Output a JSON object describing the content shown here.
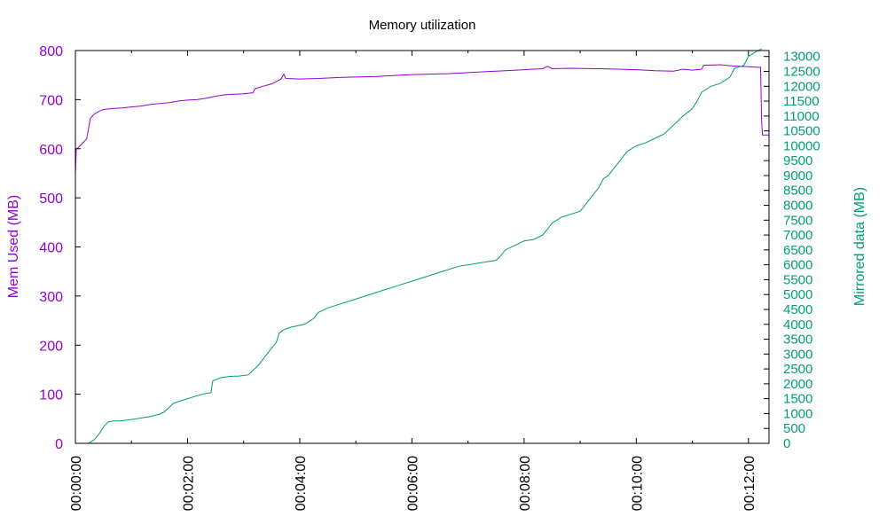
{
  "chart_data": {
    "type": "line",
    "title": "Memory utilization",
    "ylabel": "Mem Used (MB)",
    "y2label": "Mirrored data (MB)",
    "xlim": [
      0,
      742
    ],
    "ylim": [
      0,
      800
    ],
    "y2lim": [
      0,
      13200
    ],
    "x_ticks": [
      {
        "value": 0,
        "label": "00:00:00"
      },
      {
        "value": 120,
        "label": "00:02:00"
      },
      {
        "value": 240,
        "label": "00:04:00"
      },
      {
        "value": 360,
        "label": "00:06:00"
      },
      {
        "value": 480,
        "label": "00:08:00"
      },
      {
        "value": 600,
        "label": "00:10:00"
      },
      {
        "value": 720,
        "label": "00:12:00"
      }
    ],
    "x_minor_ticks": [
      60,
      180,
      300,
      420,
      540,
      660
    ],
    "y_ticks": [
      0,
      100,
      200,
      300,
      400,
      500,
      600,
      700,
      800
    ],
    "y2_ticks": [
      0,
      500,
      1000,
      1500,
      2000,
      2500,
      3000,
      3500,
      4000,
      4500,
      5000,
      5500,
      6000,
      6500,
      7000,
      7500,
      8000,
      8500,
      9000,
      9500,
      10000,
      10500,
      11000,
      11500,
      12000,
      12500,
      13000
    ],
    "grid": false,
    "legend": "none",
    "colors": {
      "mem": "#9400d3",
      "mirrored": "#009e73",
      "axis": "#000000"
    },
    "series": [
      {
        "key": "mem",
        "axis": "left",
        "points": [
          [
            0,
            550
          ],
          [
            1,
            600
          ],
          [
            3,
            602
          ],
          [
            8,
            612
          ],
          [
            12,
            620
          ],
          [
            14,
            640
          ],
          [
            16,
            662
          ],
          [
            20,
            670
          ],
          [
            25,
            676
          ],
          [
            30,
            680
          ],
          [
            40,
            682
          ],
          [
            50,
            683
          ],
          [
            60,
            685
          ],
          [
            70,
            687
          ],
          [
            80,
            690
          ],
          [
            90,
            692
          ],
          [
            100,
            694
          ],
          [
            110,
            697
          ],
          [
            120,
            699
          ],
          [
            130,
            700
          ],
          [
            140,
            703
          ],
          [
            150,
            707
          ],
          [
            160,
            710
          ],
          [
            170,
            711
          ],
          [
            180,
            712
          ],
          [
            190,
            714
          ],
          [
            192,
            722
          ],
          [
            200,
            727
          ],
          [
            210,
            732
          ],
          [
            215,
            737
          ],
          [
            220,
            742
          ],
          [
            223,
            752
          ],
          [
            225,
            743
          ],
          [
            240,
            742
          ],
          [
            260,
            743
          ],
          [
            280,
            745
          ],
          [
            300,
            746
          ],
          [
            320,
            747
          ],
          [
            340,
            749
          ],
          [
            360,
            751
          ],
          [
            380,
            752
          ],
          [
            400,
            753
          ],
          [
            420,
            755
          ],
          [
            440,
            757
          ],
          [
            460,
            759
          ],
          [
            480,
            761
          ],
          [
            490,
            762
          ],
          [
            500,
            763
          ],
          [
            505,
            768
          ],
          [
            510,
            763
          ],
          [
            530,
            764
          ],
          [
            560,
            763
          ],
          [
            580,
            762
          ],
          [
            600,
            761
          ],
          [
            620,
            759
          ],
          [
            640,
            758
          ],
          [
            650,
            762
          ],
          [
            660,
            760
          ],
          [
            670,
            762
          ],
          [
            672,
            770
          ],
          [
            690,
            771
          ],
          [
            700,
            769
          ],
          [
            710,
            768
          ],
          [
            720,
            767
          ],
          [
            730,
            766
          ],
          [
            733,
            766
          ],
          [
            734,
            660
          ],
          [
            735,
            628
          ],
          [
            742,
            628
          ]
        ]
      },
      {
        "key": "mirrored",
        "axis": "right",
        "points": [
          [
            14,
            0
          ],
          [
            20,
            120
          ],
          [
            25,
            300
          ],
          [
            30,
            550
          ],
          [
            35,
            720
          ],
          [
            40,
            750
          ],
          [
            50,
            760
          ],
          [
            60,
            800
          ],
          [
            70,
            850
          ],
          [
            80,
            900
          ],
          [
            90,
            980
          ],
          [
            95,
            1050
          ],
          [
            100,
            1200
          ],
          [
            105,
            1350
          ],
          [
            110,
            1400
          ],
          [
            120,
            1500
          ],
          [
            130,
            1600
          ],
          [
            140,
            1680
          ],
          [
            145,
            1700
          ],
          [
            147,
            2100
          ],
          [
            155,
            2200
          ],
          [
            165,
            2250
          ],
          [
            175,
            2260
          ],
          [
            185,
            2300
          ],
          [
            190,
            2450
          ],
          [
            195,
            2600
          ],
          [
            200,
            2800
          ],
          [
            205,
            3000
          ],
          [
            210,
            3200
          ],
          [
            215,
            3400
          ],
          [
            218,
            3700
          ],
          [
            222,
            3800
          ],
          [
            230,
            3900
          ],
          [
            245,
            4000
          ],
          [
            250,
            4100
          ],
          [
            255,
            4200
          ],
          [
            260,
            4400
          ],
          [
            270,
            4550
          ],
          [
            280,
            4650
          ],
          [
            290,
            4750
          ],
          [
            300,
            4850
          ],
          [
            310,
            4950
          ],
          [
            320,
            5050
          ],
          [
            330,
            5150
          ],
          [
            340,
            5250
          ],
          [
            350,
            5350
          ],
          [
            360,
            5450
          ],
          [
            370,
            5550
          ],
          [
            380,
            5650
          ],
          [
            390,
            5750
          ],
          [
            400,
            5850
          ],
          [
            410,
            5950
          ],
          [
            420,
            6000
          ],
          [
            440,
            6100
          ],
          [
            450,
            6150
          ],
          [
            455,
            6300
          ],
          [
            460,
            6500
          ],
          [
            470,
            6650
          ],
          [
            480,
            6800
          ],
          [
            490,
            6850
          ],
          [
            500,
            7000
          ],
          [
            505,
            7200
          ],
          [
            510,
            7400
          ],
          [
            520,
            7600
          ],
          [
            530,
            7700
          ],
          [
            540,
            7800
          ],
          [
            545,
            8000
          ],
          [
            550,
            8200
          ],
          [
            555,
            8400
          ],
          [
            560,
            8600
          ],
          [
            565,
            8900
          ],
          [
            570,
            9000
          ],
          [
            575,
            9200
          ],
          [
            580,
            9400
          ],
          [
            585,
            9600
          ],
          [
            590,
            9800
          ],
          [
            600,
            10000
          ],
          [
            610,
            10100
          ],
          [
            620,
            10250
          ],
          [
            630,
            10400
          ],
          [
            640,
            10700
          ],
          [
            650,
            11000
          ],
          [
            660,
            11250
          ],
          [
            665,
            11500
          ],
          [
            670,
            11800
          ],
          [
            680,
            12000
          ],
          [
            690,
            12100
          ],
          [
            700,
            12300
          ],
          [
            705,
            12600
          ],
          [
            710,
            12650
          ],
          [
            715,
            12700
          ],
          [
            720,
            13000
          ],
          [
            730,
            13200
          ],
          [
            734,
            13250
          ]
        ]
      }
    ]
  }
}
